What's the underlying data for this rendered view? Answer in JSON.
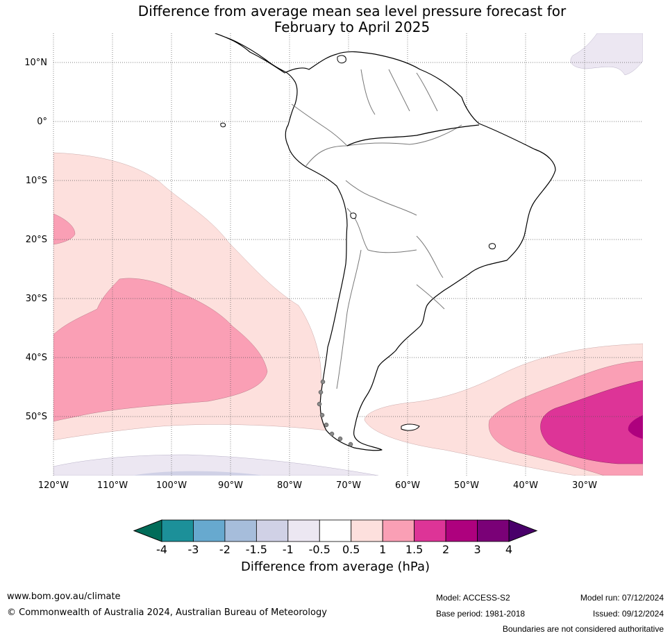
{
  "title_line1": "Difference from average mean sea level pressure forecast for",
  "title_line2": "February to April 2025",
  "lat_labels": [
    "10°N",
    "0°",
    "10°S",
    "20°S",
    "30°S",
    "40°S",
    "50°S"
  ],
  "lon_labels": [
    "120°W",
    "110°W",
    "100°W",
    "90°W",
    "80°W",
    "70°W",
    "60°W",
    "50°W",
    "40°W",
    "30°W"
  ],
  "colorbar": {
    "ticks": [
      "-4",
      "-3",
      "-2",
      "-1.5",
      "-1",
      "-0.5",
      "0.5",
      "1",
      "1.5",
      "2",
      "3",
      "4"
    ],
    "colors": [
      "#1c9099",
      "#67a9cf",
      "#a6bddb",
      "#d0d1e6",
      "#ece7f2",
      "#ffffff",
      "#fde0dd",
      "#fa9fb5",
      "#dd3497",
      "#ae017e",
      "#7a0177"
    ],
    "under_color": "#016c59",
    "over_color": "#49006a",
    "label": "Difference from average (hPa)"
  },
  "footer": {
    "url": "www.bom.gov.au/climate",
    "copyright": "© Commonwealth of Australia 2024, Australian Bureau of Meteorology",
    "model": "Model: ACCESS-S2",
    "base_period": "Base period: 1981-2018",
    "model_run": "Model run: 07/12/2024",
    "issued": "Issued: 09/12/2024",
    "disclaimer": "Boundaries are not considered authoritative"
  }
}
